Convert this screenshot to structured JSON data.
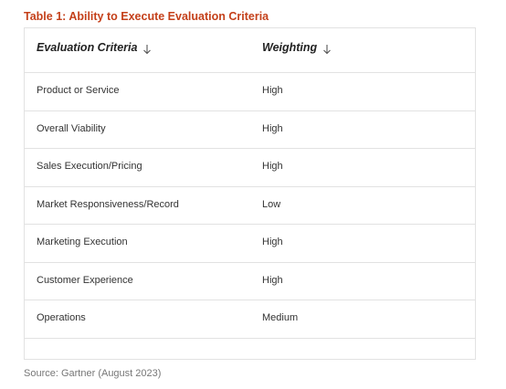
{
  "table_title": "Table 1: Ability to Execute Evaluation Criteria",
  "headers": {
    "criteria": "Evaluation Criteria",
    "weighting": "Weighting",
    "sort_icon": "arrow-down-icon"
  },
  "rows": [
    {
      "criteria": "Product or Service",
      "weighting": "High"
    },
    {
      "criteria": "Overall Viability",
      "weighting": "High"
    },
    {
      "criteria": "Sales Execution/Pricing",
      "weighting": "High"
    },
    {
      "criteria": "Market Responsiveness/Record",
      "weighting": "Low"
    },
    {
      "criteria": "Marketing Execution",
      "weighting": "High"
    },
    {
      "criteria": "Customer Experience",
      "weighting": "High"
    },
    {
      "criteria": "Operations",
      "weighting": "Medium"
    }
  ],
  "source": "Source: Gartner (August 2023)",
  "colors": {
    "title": "#c4401a",
    "border": "#e2e2e2",
    "source": "#777777"
  }
}
